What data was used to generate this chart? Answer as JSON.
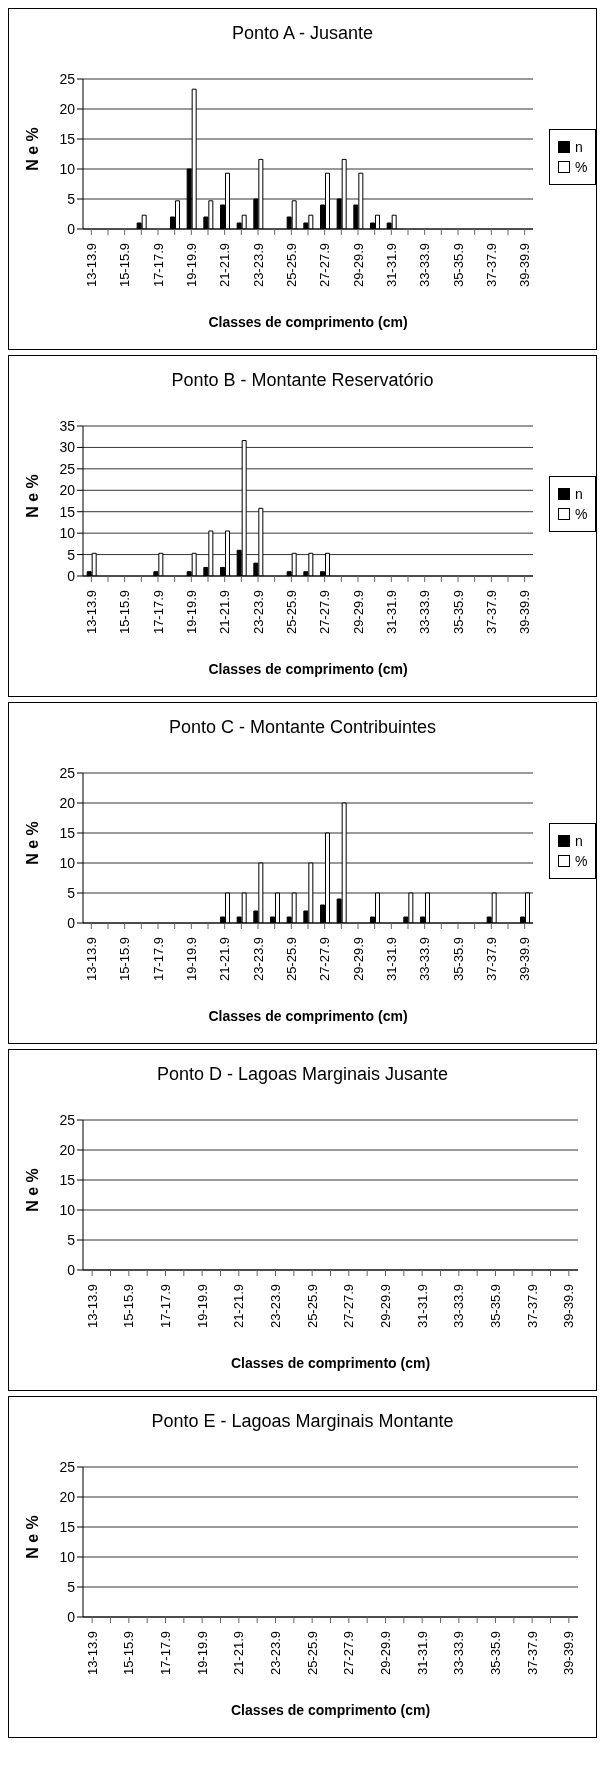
{
  "chart_data": [
    {
      "type": "bar",
      "title": "Ponto A - Jusante",
      "xlabel": "Classes de comprimento (cm)",
      "ylabel": "N e %",
      "categories": [
        "13-13.9",
        null,
        "15-15.9",
        null,
        "17-17.9",
        null,
        "19-19.9",
        null,
        "21-21.9",
        null,
        "23-23.9",
        null,
        "25-25.9",
        null,
        "27-27.9",
        null,
        "29-29.9",
        null,
        "31-31.9",
        null,
        "33-33.9",
        null,
        "35-35.9",
        null,
        "37-37.9",
        null,
        "39-39.9"
      ],
      "series": [
        {
          "name": "n",
          "color": "#000000",
          "values": [
            null,
            null,
            null,
            1,
            null,
            2,
            10,
            2,
            4,
            1,
            5,
            null,
            2,
            1,
            4,
            5,
            4,
            1,
            1,
            null,
            null,
            null,
            null,
            null,
            null,
            null,
            null
          ]
        },
        {
          "name": "%",
          "color": "#ffffff",
          "values": [
            null,
            null,
            null,
            2.3,
            null,
            4.7,
            23.3,
            4.7,
            9.3,
            2.3,
            11.6,
            null,
            4.7,
            2.3,
            9.3,
            11.6,
            9.3,
            2.3,
            2.3,
            null,
            null,
            null,
            null,
            null,
            null,
            null,
            null
          ]
        }
      ],
      "ylim": [
        0,
        25
      ],
      "yticks": [
        0,
        5,
        10,
        15,
        20,
        25
      ],
      "grid": "y",
      "legend": "right"
    },
    {
      "type": "bar",
      "title": "Ponto B - Montante Reservatório",
      "xlabel": "Classes de comprimento (cm)",
      "ylabel": "N e %",
      "categories": [
        "13-13.9",
        null,
        "15-15.9",
        null,
        "17-17.9",
        null,
        "19-19.9",
        null,
        "21-21.9",
        null,
        "23-23.9",
        null,
        "25-25.9",
        null,
        "27-27.9",
        null,
        "29-29.9",
        null,
        "31-31.9",
        null,
        "33-33.9",
        null,
        "35-35.9",
        null,
        "37-37.9",
        null,
        "39-39.9"
      ],
      "series": [
        {
          "name": "n",
          "color": "#000000",
          "values": [
            1,
            null,
            null,
            null,
            1,
            null,
            1,
            2,
            2,
            6,
            3,
            null,
            1,
            1,
            1,
            null,
            null,
            null,
            null,
            null,
            null,
            null,
            null,
            null,
            null,
            null,
            null
          ]
        },
        {
          "name": "%",
          "color": "#ffffff",
          "values": [
            5.3,
            null,
            null,
            null,
            5.3,
            null,
            5.3,
            10.5,
            10.5,
            31.6,
            15.8,
            null,
            5.3,
            5.3,
            5.3,
            null,
            null,
            null,
            null,
            null,
            null,
            null,
            null,
            null,
            null,
            null,
            null
          ]
        }
      ],
      "ylim": [
        0,
        35
      ],
      "yticks": [
        0,
        5,
        10,
        15,
        20,
        25,
        30,
        35
      ],
      "grid": "y",
      "legend": "right"
    },
    {
      "type": "bar",
      "title": "Ponto C - Montante Contribuintes",
      "xlabel": "Classes de comprimento (cm)",
      "ylabel": "N e %",
      "categories": [
        "13-13.9",
        null,
        "15-15.9",
        null,
        "17-17.9",
        null,
        "19-19.9",
        null,
        "21-21.9",
        null,
        "23-23.9",
        null,
        "25-25.9",
        null,
        "27-27.9",
        null,
        "29-29.9",
        null,
        "31-31.9",
        null,
        "33-33.9",
        null,
        "35-35.9",
        null,
        "37-37.9",
        null,
        "39-39.9"
      ],
      "series": [
        {
          "name": "n",
          "color": "#000000",
          "values": [
            null,
            null,
            null,
            null,
            null,
            null,
            null,
            null,
            1,
            1,
            2,
            1,
            1,
            2,
            3,
            4,
            null,
            1,
            null,
            1,
            1,
            null,
            null,
            null,
            1,
            null,
            1
          ]
        },
        {
          "name": "%",
          "color": "#ffffff",
          "values": [
            null,
            null,
            null,
            null,
            null,
            null,
            null,
            null,
            5,
            5,
            10,
            5,
            5,
            10,
            15,
            20,
            null,
            5,
            null,
            5,
            5,
            null,
            null,
            null,
            5,
            null,
            5
          ]
        }
      ],
      "ylim": [
        0,
        25
      ],
      "yticks": [
        0,
        5,
        10,
        15,
        20,
        25
      ],
      "grid": "y",
      "legend": "right"
    },
    {
      "type": "bar",
      "title": "Ponto D - Lagoas Marginais Jusante",
      "xlabel": "Classes de comprimento (cm)",
      "ylabel": "N e %",
      "categories": [
        "13-13.9",
        null,
        "15-15.9",
        null,
        "17-17.9",
        null,
        "19-19.9",
        null,
        "21-21.9",
        null,
        "23-23.9",
        null,
        "25-25.9",
        null,
        "27-27.9",
        null,
        "29-29.9",
        null,
        "31-31.9",
        null,
        "33-33.9",
        null,
        "35-35.9",
        null,
        "37-37.9",
        null,
        "39-39.9"
      ],
      "ylim": [
        0,
        25
      ],
      "yticks": [
        0,
        5,
        10,
        15,
        20,
        25
      ],
      "grid": "y"
    },
    {
      "type": "bar",
      "title": "Ponto E - Lagoas Marginais Montante",
      "xlabel": "Classes de comprimento (cm)",
      "ylabel": "N e %",
      "categories": [
        "13-13.9",
        null,
        "15-15.9",
        null,
        "17-17.9",
        null,
        "19-19.9",
        null,
        "21-21.9",
        null,
        "23-23.9",
        null,
        "25-25.9",
        null,
        "27-27.9",
        null,
        "29-29.9",
        null,
        "31-31.9",
        null,
        "33-33.9",
        null,
        "35-35.9",
        null,
        "37-37.9",
        null,
        "39-39.9"
      ],
      "ylim": [
        0,
        25
      ],
      "yticks": [
        0,
        5,
        10,
        15,
        20,
        25
      ],
      "grid": "y"
    }
  ]
}
